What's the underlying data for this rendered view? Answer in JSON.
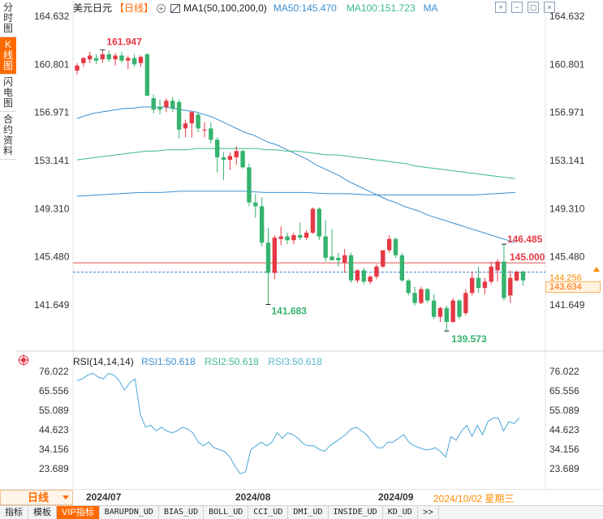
{
  "left_tabs": [
    {
      "label": "分时图",
      "name": "tab-intraday"
    },
    {
      "label": "K线图",
      "name": "tab-kline"
    },
    {
      "label": "闪电图",
      "name": "tab-flash"
    },
    {
      "label": "合约资料",
      "name": "tab-contract-info"
    }
  ],
  "header": {
    "symbol": "美元日元",
    "period": "【日线】",
    "ma_params": "MA1(50,100,200,0)",
    "ma50": "MA50:145.470",
    "ma100": "MA100:151.723",
    "ma200": "MA"
  },
  "top_icons": [
    "zoom-in-icon",
    "zoom-out-icon",
    "expand-icon",
    "close-icon"
  ],
  "rsi_header": {
    "params": "RSI(14,14,14)",
    "rsi1": "RSI1:50.618",
    "rsi2": "RSI2:50.618",
    "rsi3": "RSI3:50.618"
  },
  "price_axis": [
    "164.632",
    "160.801",
    "156.971",
    "153.141",
    "149.310",
    "145.480",
    "141.649"
  ],
  "rsi_axis": [
    "76.022",
    "65.556",
    "55.089",
    "44.623",
    "34.156",
    "23.689"
  ],
  "annotations": {
    "high_label": "161.947",
    "low_label1": "141.683",
    "low_label2": "139.573",
    "recent_high": "146.485",
    "alert_line": "145.000",
    "last_price_hidden": "144.256",
    "last_price": "143.634"
  },
  "date_row": {
    "period_button": "日线",
    "dates": [
      "2024/07",
      "2024/08",
      "2024/09"
    ],
    "current": "2024/10/02 星期三"
  },
  "indicator_tabs": [
    "指标",
    "模板",
    "VIP指标",
    "BARUPDN_UD",
    "BIAS_UD",
    "BOLL_UD",
    "CCI_UD",
    "DMI_UD",
    "INSIDE_UD",
    "KD_UD",
    ">>"
  ],
  "colors": {
    "up": "#e53945",
    "down": "#35b36f",
    "ma50": "#3d8fd1",
    "ma100": "#3cba8a",
    "ma200": "#3d8fd1",
    "rsi": "#4aa8d8",
    "accent": "#ff6a00"
  },
  "chart_data": {
    "type": "candlestick",
    "candles": [
      {
        "o": 160.3,
        "h": 160.9,
        "l": 160.0,
        "c": 160.7
      },
      {
        "o": 160.9,
        "h": 161.4,
        "l": 160.6,
        "c": 161.3
      },
      {
        "o": 161.2,
        "h": 161.8,
        "l": 160.9,
        "c": 161.5
      },
      {
        "o": 161.3,
        "h": 161.6,
        "l": 160.8,
        "c": 161.1
      },
      {
        "o": 161.2,
        "h": 161.9,
        "l": 160.9,
        "c": 161.6
      },
      {
        "o": 161.6,
        "h": 161.9,
        "l": 161.0,
        "c": 161.2
      },
      {
        "o": 161.2,
        "h": 161.7,
        "l": 160.7,
        "c": 161.5
      },
      {
        "o": 161.5,
        "h": 161.8,
        "l": 160.9,
        "c": 161.1
      },
      {
        "o": 161.1,
        "h": 161.5,
        "l": 160.4,
        "c": 161.3
      },
      {
        "o": 161.3,
        "h": 161.6,
        "l": 160.6,
        "c": 160.8
      },
      {
        "o": 160.9,
        "h": 161.5,
        "l": 160.6,
        "c": 161.4
      },
      {
        "o": 161.6,
        "h": 161.7,
        "l": 158.3,
        "c": 158.3
      },
      {
        "o": 158.1,
        "h": 158.4,
        "l": 156.9,
        "c": 157.2
      },
      {
        "o": 157.4,
        "h": 158.0,
        "l": 156.8,
        "c": 157.2
      },
      {
        "o": 157.4,
        "h": 158.1,
        "l": 157.0,
        "c": 157.9
      },
      {
        "o": 157.9,
        "h": 158.2,
        "l": 157.0,
        "c": 157.3
      },
      {
        "o": 157.8,
        "h": 158.0,
        "l": 154.9,
        "c": 155.6
      },
      {
        "o": 155.7,
        "h": 156.4,
        "l": 155.0,
        "c": 156.1
      },
      {
        "o": 156.1,
        "h": 157.1,
        "l": 155.0,
        "c": 157.0
      },
      {
        "o": 156.8,
        "h": 157.0,
        "l": 155.4,
        "c": 155.7
      },
      {
        "o": 155.6,
        "h": 156.2,
        "l": 155.0,
        "c": 155.6
      },
      {
        "o": 155.7,
        "h": 156.2,
        "l": 154.5,
        "c": 154.8
      },
      {
        "o": 154.8,
        "h": 155.0,
        "l": 152.2,
        "c": 153.4
      },
      {
        "o": 153.4,
        "h": 153.8,
        "l": 151.6,
        "c": 153.2
      },
      {
        "o": 153.2,
        "h": 153.8,
        "l": 152.4,
        "c": 153.5
      },
      {
        "o": 153.4,
        "h": 154.3,
        "l": 152.8,
        "c": 153.9
      },
      {
        "o": 153.9,
        "h": 154.0,
        "l": 152.5,
        "c": 152.6
      },
      {
        "o": 152.6,
        "h": 152.9,
        "l": 149.5,
        "c": 149.8
      },
      {
        "o": 149.8,
        "h": 150.5,
        "l": 148.6,
        "c": 149.5
      },
      {
        "o": 149.5,
        "h": 150.2,
        "l": 146.3,
        "c": 146.6
      },
      {
        "o": 146.6,
        "h": 147.8,
        "l": 141.7,
        "c": 144.2
      },
      {
        "o": 144.2,
        "h": 147.2,
        "l": 143.7,
        "c": 147.0
      },
      {
        "o": 146.9,
        "h": 147.9,
        "l": 146.4,
        "c": 147.1
      },
      {
        "o": 147.1,
        "h": 147.4,
        "l": 146.5,
        "c": 146.8
      },
      {
        "o": 146.8,
        "h": 147.4,
        "l": 146.5,
        "c": 147.2
      },
      {
        "o": 147.2,
        "h": 148.2,
        "l": 146.8,
        "c": 147.0
      },
      {
        "o": 147.0,
        "h": 147.6,
        "l": 146.8,
        "c": 147.4
      },
      {
        "o": 147.4,
        "h": 149.4,
        "l": 147.3,
        "c": 149.3
      },
      {
        "o": 149.3,
        "h": 149.4,
        "l": 146.8,
        "c": 147.1
      },
      {
        "o": 147.1,
        "h": 148.4,
        "l": 145.1,
        "c": 145.4
      },
      {
        "o": 145.5,
        "h": 147.7,
        "l": 145.3,
        "c": 145.2
      },
      {
        "o": 145.4,
        "h": 145.8,
        "l": 144.7,
        "c": 145.2
      },
      {
        "o": 145.0,
        "h": 146.1,
        "l": 144.2,
        "c": 145.6
      },
      {
        "o": 145.6,
        "h": 145.8,
        "l": 143.4,
        "c": 143.6
      },
      {
        "o": 143.6,
        "h": 144.5,
        "l": 143.4,
        "c": 144.4
      },
      {
        "o": 144.4,
        "h": 144.6,
        "l": 143.3,
        "c": 143.5
      },
      {
        "o": 143.5,
        "h": 144.0,
        "l": 143.3,
        "c": 143.9
      },
      {
        "o": 143.9,
        "h": 144.9,
        "l": 143.7,
        "c": 144.7
      },
      {
        "o": 144.7,
        "h": 146.0,
        "l": 144.6,
        "c": 146.0
      },
      {
        "o": 146.0,
        "h": 147.2,
        "l": 145.8,
        "c": 146.9
      },
      {
        "o": 146.9,
        "h": 147.0,
        "l": 145.4,
        "c": 145.6
      },
      {
        "o": 145.6,
        "h": 145.8,
        "l": 143.5,
        "c": 143.6
      },
      {
        "o": 143.6,
        "h": 143.7,
        "l": 142.4,
        "c": 142.6
      },
      {
        "o": 142.6,
        "h": 143.1,
        "l": 141.6,
        "c": 141.8
      },
      {
        "o": 141.8,
        "h": 143.1,
        "l": 141.7,
        "c": 142.9
      },
      {
        "o": 142.9,
        "h": 143.0,
        "l": 141.8,
        "c": 142.0
      },
      {
        "o": 142.0,
        "h": 142.5,
        "l": 140.5,
        "c": 140.7
      },
      {
        "o": 140.7,
        "h": 141.5,
        "l": 140.3,
        "c": 141.4
      },
      {
        "o": 141.4,
        "h": 141.6,
        "l": 139.6,
        "c": 140.3
      },
      {
        "o": 140.3,
        "h": 142.2,
        "l": 140.2,
        "c": 142.0
      },
      {
        "o": 142.0,
        "h": 142.1,
        "l": 140.5,
        "c": 140.7
      },
      {
        "o": 141.0,
        "h": 142.9,
        "l": 140.8,
        "c": 142.6
      },
      {
        "o": 142.6,
        "h": 144.3,
        "l": 142.4,
        "c": 143.8
      },
      {
        "o": 143.8,
        "h": 144.7,
        "l": 142.6,
        "c": 143.0
      },
      {
        "o": 143.0,
        "h": 143.8,
        "l": 142.5,
        "c": 143.5
      },
      {
        "o": 143.5,
        "h": 145.1,
        "l": 143.3,
        "c": 144.7
      },
      {
        "o": 144.4,
        "h": 145.3,
        "l": 143.5,
        "c": 145.1
      },
      {
        "o": 145.1,
        "h": 146.5,
        "l": 142.0,
        "c": 142.2
      },
      {
        "o": 142.4,
        "h": 144.4,
        "l": 141.8,
        "c": 143.8
      },
      {
        "o": 143.6,
        "h": 144.4,
        "l": 143.5,
        "c": 144.3
      },
      {
        "o": 144.3,
        "h": 144.4,
        "l": 143.2,
        "c": 143.6
      }
    ],
    "ma50": [
      156.5,
      156.7,
      156.9,
      157.0,
      157.1,
      157.2,
      157.3,
      157.3,
      157.4,
      157.4,
      157.4,
      157.4,
      157.3,
      157.2,
      157.1,
      157.0,
      156.8,
      156.6,
      156.3,
      156.0,
      155.7,
      155.4,
      155.2,
      154.9,
      154.6,
      154.4,
      154.1,
      153.8,
      153.5,
      153.2,
      152.8,
      152.5,
      152.2,
      151.9,
      151.5,
      151.2,
      150.9,
      150.6,
      150.3,
      150.0,
      149.8,
      149.5,
      149.3,
      149.1,
      148.8,
      148.6,
      148.4,
      148.2,
      148.0,
      147.8,
      147.6,
      147.4,
      147.2,
      147.0,
      146.8,
      146.6
    ],
    "ma100": [
      153.2,
      153.3,
      153.4,
      153.5,
      153.6,
      153.7,
      153.8,
      153.9,
      153.9,
      154.0,
      154.0,
      154.0,
      154.1,
      154.1,
      154.1,
      154.1,
      154.1,
      154.1,
      154.1,
      154.0,
      154.0,
      153.9,
      153.9,
      153.8,
      153.7,
      153.6,
      153.6,
      153.5,
      153.4,
      153.3,
      153.2,
      153.1,
      153.0,
      152.9,
      152.7,
      152.6,
      152.5,
      152.4,
      152.3,
      152.2,
      152.1,
      152.0,
      151.9,
      151.8,
      151.7
    ],
    "ma200": [
      150.3,
      150.4,
      150.5,
      150.6,
      150.6,
      150.7,
      150.7,
      150.7,
      150.7,
      150.6,
      150.6,
      150.6,
      150.5,
      150.5,
      150.4,
      150.4,
      150.4,
      150.4,
      150.4,
      150.4,
      150.5,
      150.6
    ],
    "rsi": [
      71,
      72,
      74,
      75,
      73,
      72,
      75,
      74,
      71,
      66,
      70,
      72,
      53,
      46,
      47,
      44,
      46,
      44,
      43,
      44,
      46,
      45,
      43,
      38,
      36,
      38,
      35,
      34,
      33,
      30,
      25,
      21,
      22,
      34,
      36,
      38,
      36,
      38,
      43,
      40,
      43,
      42,
      40,
      37,
      36,
      36,
      34,
      33,
      36,
      38,
      40,
      42,
      45,
      46,
      44,
      42,
      38,
      35,
      35,
      38,
      38,
      40,
      42,
      38,
      36,
      35,
      34,
      34,
      35,
      33,
      30,
      41,
      39,
      44,
      47,
      41,
      47,
      42,
      49,
      51,
      51,
      44,
      49,
      48,
      51
    ]
  }
}
